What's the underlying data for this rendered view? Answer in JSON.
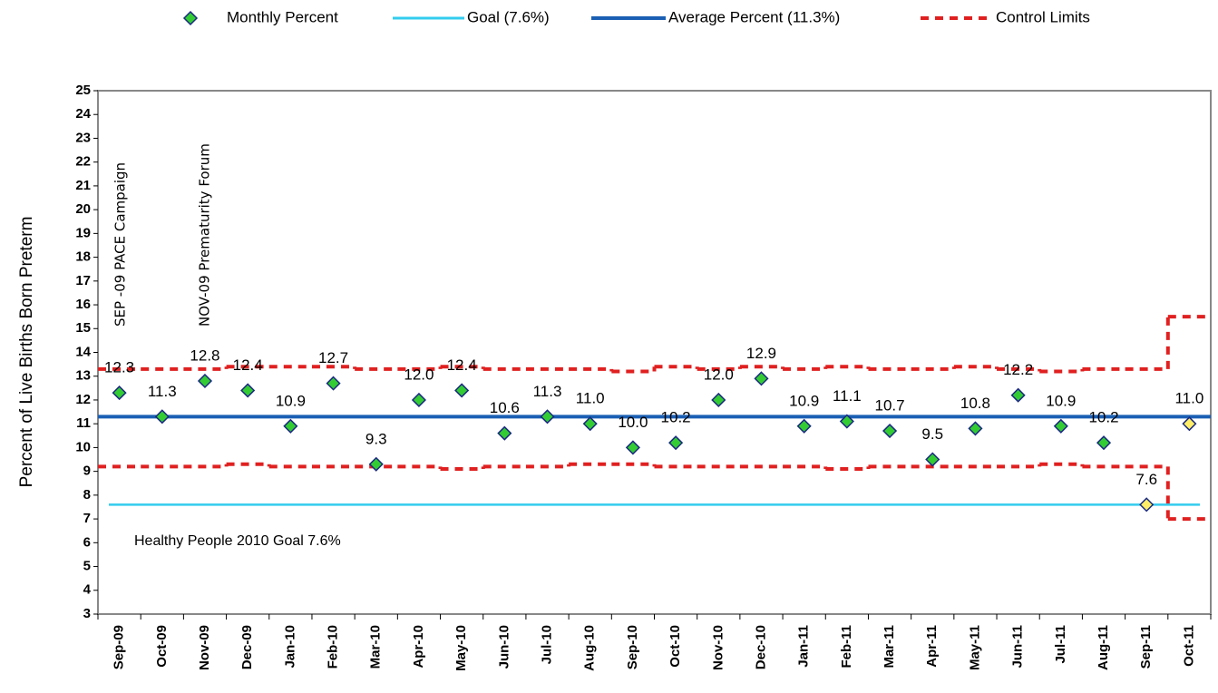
{
  "chart_data": {
    "type": "control",
    "y_label": "Percent of Live Births Born Preterm",
    "categories": [
      "Sep-09",
      "Oct-09",
      "Nov-09",
      "Dec-09",
      "Jan-10",
      "Feb-10",
      "Mar-10",
      "Apr-10",
      "May-10",
      "Jun-10",
      "Jul-10",
      "Aug-10",
      "Sep-10",
      "Oct-10",
      "Nov-10",
      "Dec-10",
      "Jan-11",
      "Feb-11",
      "Mar-11",
      "Apr-11",
      "May-11",
      "Jun-11",
      "Jul-11",
      "Aug-11",
      "Sep-11",
      "Oct-11"
    ],
    "series": [
      {
        "name": "Monthly Percent",
        "color": "#33cc33",
        "point_colors": [
          "#33cc33",
          "#33cc33",
          "#33cc33",
          "#33cc33",
          "#33cc33",
          "#33cc33",
          "#33cc33",
          "#33cc33",
          "#33cc33",
          "#33cc33",
          "#33cc33",
          "#33cc33",
          "#33cc33",
          "#33cc33",
          "#33cc33",
          "#33cc33",
          "#33cc33",
          "#33cc33",
          "#33cc33",
          "#33cc33",
          "#33cc33",
          "#33cc33",
          "#33cc33",
          "#33cc33",
          "#ffee66",
          "#ffee66"
        ],
        "values": [
          12.3,
          11.3,
          12.8,
          12.4,
          10.9,
          12.7,
          9.3,
          12.0,
          12.4,
          10.6,
          11.3,
          11.0,
          10.0,
          10.2,
          12.0,
          12.9,
          10.9,
          11.1,
          10.7,
          9.5,
          10.8,
          12.2,
          10.9,
          10.2,
          7.6,
          11.0
        ],
        "value_labels": [
          "12.3",
          "11.3",
          "12.8",
          "12.4",
          "10.9",
          "12.7",
          "9.3",
          "12.0",
          "12.4",
          "10.6",
          "11.3",
          "11.0",
          "10.0",
          "10.2",
          "12.0",
          "12.9",
          "10.9",
          "11.1",
          "10.7",
          "9.5",
          "10.8",
          "12.2",
          "10.9",
          "10.2",
          "7.6",
          "11.0"
        ]
      }
    ],
    "goal": {
      "name": "Goal (7.6%)",
      "color": "#33ccee",
      "value": 7.6
    },
    "average": {
      "name": "Average Percent (11.3%)",
      "color": "#1a5fb4",
      "value": 11.3
    },
    "control_limits": {
      "name": "Control Limits",
      "color": "#e02020",
      "upper": [
        13.3,
        13.3,
        13.3,
        13.4,
        13.4,
        13.4,
        13.3,
        13.3,
        13.4,
        13.3,
        13.3,
        13.3,
        13.2,
        13.4,
        13.3,
        13.4,
        13.3,
        13.4,
        13.3,
        13.3,
        13.4,
        13.3,
        13.2,
        13.3,
        13.3,
        15.5
      ],
      "lower": [
        9.2,
        9.2,
        9.2,
        9.3,
        9.2,
        9.2,
        9.2,
        9.2,
        9.1,
        9.2,
        9.2,
        9.3,
        9.3,
        9.2,
        9.2,
        9.2,
        9.2,
        9.1,
        9.2,
        9.2,
        9.2,
        9.2,
        9.3,
        9.2,
        9.2,
        7.0
      ]
    },
    "annotations": [
      "SEP -09 PACE Campaign",
      "NOV-09 Prematurity Forum",
      "Healthy People 2010 Goal 7.6%"
    ],
    "ylim": [
      3,
      25
    ],
    "yticks": [
      3,
      4,
      5,
      6,
      7,
      8,
      9,
      10,
      11,
      12,
      13,
      14,
      15,
      16,
      17,
      18,
      19,
      20,
      21,
      22,
      23,
      24,
      25
    ]
  }
}
